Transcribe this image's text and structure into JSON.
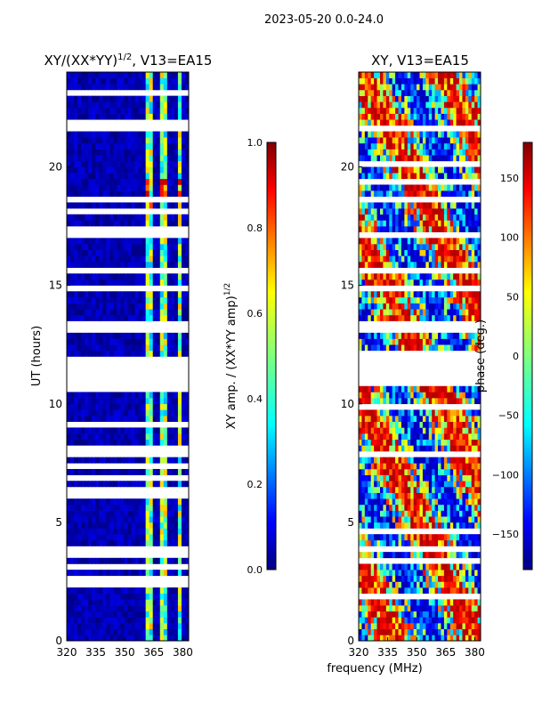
{
  "figure_title": "2023-05-20 0.0-24.0",
  "shared_xlabel": "frequency (MHz)",
  "colors": {
    "jet": [
      "#00007f",
      "#0000ff",
      "#007fff",
      "#00ffff",
      "#7fff7f",
      "#ffff00",
      "#ff7f00",
      "#ff0000",
      "#7f0000"
    ]
  },
  "chart_data": [
    {
      "type": "heatmap",
      "title": "XY/(XX*YY)",
      "title_exponent": "1/2",
      "title_suffix": ", V13=EA15",
      "xlabel": "",
      "ylabel": "UT (hours)",
      "xlim": [
        320,
        383
      ],
      "ylim": [
        0,
        24
      ],
      "xticks": [
        320,
        335,
        350,
        365,
        380
      ],
      "yticks": [
        0,
        5,
        10,
        15,
        20
      ],
      "bright_bands_mhz": [
        [
          361,
          364
        ],
        [
          365.5,
          366.5
        ],
        [
          368,
          371
        ],
        [
          375,
          376.5
        ],
        [
          378,
          380
        ]
      ],
      "data_gaps_hours": [
        [
          10.7,
          11.9
        ],
        [
          13.0,
          13.4
        ],
        [
          16.9,
          17.3
        ],
        [
          21.5,
          21.7
        ],
        [
          6.4,
          6.6
        ],
        [
          3.8,
          4.0
        ],
        [
          14.8,
          15.0
        ],
        [
          15.6,
          15.8
        ]
      ],
      "colorbar": {
        "label": "XY amp. / (XX*YY amp)",
        "label_exponent": "1/2",
        "range": [
          0.0,
          1.0
        ],
        "ticks": [
          "0.0",
          "0.2",
          "0.4",
          "0.6",
          "0.8",
          "1.0"
        ],
        "tick_values": [
          0.0,
          0.2,
          0.4,
          0.6,
          0.8,
          1.0
        ]
      }
    },
    {
      "type": "heatmap",
      "title": "XY, V13=EA15",
      "xlabel": "",
      "ylabel": "",
      "xlim": [
        320,
        383
      ],
      "ylim": [
        0,
        24
      ],
      "xticks": [
        320,
        335,
        350,
        365,
        380
      ],
      "yticks": [
        0,
        5,
        10,
        15,
        20
      ],
      "data_gaps_hours": [
        [
          10.7,
          11.9
        ],
        [
          13.0,
          13.4
        ],
        [
          16.9,
          17.3
        ],
        [
          21.5,
          21.7
        ],
        [
          6.4,
          6.6
        ],
        [
          3.8,
          4.0
        ],
        [
          14.8,
          15.0
        ],
        [
          15.6,
          15.8
        ]
      ],
      "colorbar": {
        "label": "phase (deg.)",
        "range": [
          -180,
          180
        ],
        "ticks": [
          "150",
          "100",
          "50",
          "0",
          "−50",
          "−100",
          "−150"
        ],
        "tick_values": [
          150,
          100,
          50,
          0,
          -50,
          -100,
          -150
        ]
      }
    }
  ]
}
